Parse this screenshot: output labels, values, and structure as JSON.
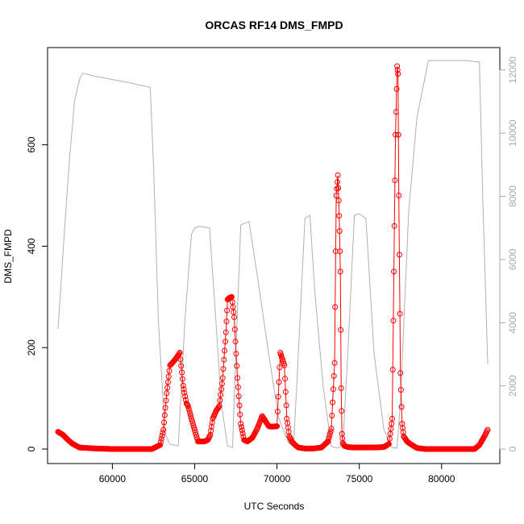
{
  "chart_data": {
    "type": "line",
    "title": "ORCAS RF14 DMS_FMPD",
    "xlabel": "UTC Seconds",
    "ylabel": "DMS_FMPD",
    "xlim": [
      56700,
      82900
    ],
    "ylim": [
      0,
      760
    ],
    "y2lim": [
      0,
      12200
    ],
    "x_ticks": [
      60000,
      65000,
      70000,
      75000,
      80000
    ],
    "x_tick_labels": [
      "60000",
      "65000",
      "70000",
      "75000",
      "80000"
    ],
    "y_ticks": [
      0,
      200,
      400,
      600
    ],
    "y_tick_labels": [
      "0",
      "200",
      "400",
      "600"
    ],
    "y2_ticks": [
      0,
      2000,
      4000,
      6000,
      8000,
      10000,
      12000
    ],
    "y2_tick_labels": [
      "0",
      "2000",
      "4000",
      "6000",
      "8000",
      "10000",
      "12000"
    ],
    "grid": false,
    "series": [
      {
        "role": "primary",
        "color": "#ff0000",
        "marker": "open-circle",
        "axis": "left",
        "x": [
          56700,
          57000,
          57300,
          57600,
          58000,
          59000,
          60000,
          61000,
          62000,
          62400,
          62900,
          63100,
          63300,
          63500,
          63700,
          63900,
          64100,
          64300,
          64500,
          64600,
          64800,
          65200,
          65600,
          65800,
          65950,
          66100,
          66300,
          66500,
          66700,
          66900,
          67000,
          67100,
          67250,
          67400,
          67600,
          67800,
          68000,
          68200,
          68500,
          68800,
          69100,
          69300,
          69500,
          69700,
          70000,
          70200,
          70300,
          70450,
          70600,
          70750,
          70900,
          71100,
          71300,
          71700,
          72200,
          72700,
          73100,
          73300,
          73500,
          73600,
          73700,
          73750,
          73800,
          73850,
          73900,
          73950,
          74000,
          74100,
          74300,
          74600,
          75000,
          75500,
          76000,
          76500,
          76800,
          77000,
          77100,
          77200,
          77300,
          77350,
          77400,
          77500,
          77600,
          77700,
          77900,
          78100,
          78500,
          79000,
          79500,
          80000,
          80500,
          81000,
          81500,
          82000,
          82300,
          82600,
          82800
        ],
        "y": [
          34,
          28,
          18,
          10,
          3,
          1,
          0,
          0,
          0,
          0,
          8,
          38,
          110,
          165,
          172,
          180,
          190,
          125,
          90,
          85,
          60,
          15,
          15,
          18,
          28,
          60,
          75,
          85,
          140,
          230,
          295,
          298,
          300,
          260,
          140,
          50,
          18,
          15,
          22,
          40,
          65,
          55,
          45,
          44,
          45,
          190,
          180,
          165,
          60,
          25,
          15,
          8,
          3,
          1,
          1,
          3,
          15,
          40,
          170,
          500,
          540,
          490,
          430,
          350,
          120,
          30,
          12,
          6,
          4,
          3,
          3,
          3,
          3,
          4,
          10,
          60,
          350,
          620,
          755,
          740,
          500,
          150,
          50,
          25,
          15,
          10,
          2,
          0,
          0,
          0,
          0,
          0,
          0,
          0,
          8,
          25,
          38
        ]
      },
      {
        "role": "secondary",
        "color": "#b0b0b0",
        "axis": "right",
        "x": [
          56700,
          57100,
          57400,
          57700,
          58000,
          58200,
          59000,
          60000,
          61000,
          62300,
          62500,
          62800,
          63200,
          63500,
          64000,
          64400,
          64800,
          65000,
          65300,
          65900,
          66300,
          66600,
          67000,
          67300,
          67500,
          67800,
          68300,
          68800,
          69500,
          70100,
          70700,
          71000,
          71200,
          71700,
          72000,
          72300,
          72800,
          73300,
          73700,
          74000,
          74300,
          74700,
          75000,
          75400,
          75900,
          76500,
          77000,
          77300,
          77500,
          78000,
          78500,
          79200,
          79500,
          80500,
          81500,
          82300,
          82500,
          82800
        ],
        "y": [
          3800,
          7000,
          9200,
          11000,
          11700,
          11900,
          11800,
          11700,
          11600,
          11450,
          9000,
          4000,
          500,
          150,
          100,
          4000,
          6800,
          7000,
          7050,
          7000,
          4000,
          1500,
          100,
          50,
          3000,
          7100,
          7200,
          5500,
          3000,
          1000,
          200,
          80,
          2000,
          7300,
          7400,
          5000,
          2000,
          80,
          30,
          150,
          3000,
          7400,
          7450,
          7300,
          3000,
          600,
          40,
          30,
          1500,
          7500,
          10500,
          12300,
          12300,
          12300,
          12300,
          12250,
          8000,
          2700
        ]
      }
    ]
  }
}
